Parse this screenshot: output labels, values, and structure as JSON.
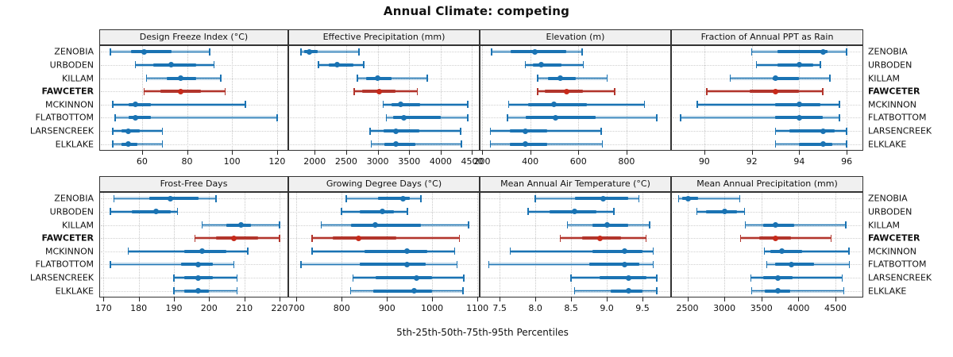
{
  "title": "Annual Climate: competing",
  "caption": "5th-25th-50th-75th-95th Percentiles",
  "colors": {
    "series_blue": "#1A73B3",
    "series_blue_band": "rgba(26,115,179,0.30)",
    "highlight_red": "#B2352C",
    "highlight_red_band": "rgba(178,53,44,0.30)",
    "highlight_red_dot": "#C72A1A",
    "strip_background": "#F0F0F0",
    "panel_border": "#333333",
    "gridline": "#C8C8C8"
  },
  "chart_data": {
    "type": "percentile-dotplot-trellis",
    "percentiles_shown": [
      "5th",
      "25th",
      "50th",
      "75th",
      "95th"
    ],
    "sites": [
      "ZENOBIA",
      "URBODEN",
      "KILLAM",
      "FAWCETER",
      "MCKINNON",
      "FLATBOTTOM",
      "LARSENCREEK",
      "ELKLAKE"
    ],
    "highlight_site": "FAWCETER",
    "legend_position": "none",
    "grid": true,
    "panels": [
      {
        "title": "Design Freeze Index (°C)",
        "row": 0,
        "col": 0,
        "xlim": [
          41,
          125
        ],
        "ticks": [
          60,
          80,
          100,
          120
        ],
        "tick_labels": [
          "60",
          "80",
          "100",
          "120"
        ],
        "values": {
          "ZENOBIA": [
            46,
            55,
            61,
            73,
            90
          ],
          "URBODEN": [
            57,
            65,
            73,
            84,
            92
          ],
          "KILLAM": [
            62,
            71,
            77,
            84,
            95
          ],
          "FAWCETER": [
            61,
            68,
            77,
            86,
            97
          ],
          "MCKINNON": [
            47,
            54,
            57,
            64,
            106
          ],
          "FLATBOTTOM": [
            48,
            54,
            57,
            64,
            120
          ],
          "LARSENCREEK": [
            47,
            51,
            54,
            59,
            69
          ],
          "ELKLAKE": [
            47,
            51,
            54,
            58,
            69
          ]
        }
      },
      {
        "title": "Effective Precipitation (mm)",
        "row": 0,
        "col": 1,
        "xlim": [
          1580,
          4620
        ],
        "ticks": [
          2000,
          2500,
          3000,
          3500,
          4000,
          4500
        ],
        "tick_labels": [
          "2000",
          "2500",
          "3000",
          "3500",
          "4000",
          "4500"
        ],
        "values": {
          "ZENOBIA": [
            1780,
            1830,
            1910,
            2050,
            2700
          ],
          "URBODEN": [
            2060,
            2220,
            2360,
            2610,
            2780
          ],
          "KILLAM": [
            2680,
            2820,
            3000,
            3220,
            3790
          ],
          "FAWCETER": [
            2630,
            2750,
            3030,
            3280,
            3630
          ],
          "MCKINNON": [
            3090,
            3220,
            3370,
            3680,
            4430
          ],
          "FLATBOTTOM": [
            3140,
            3240,
            3410,
            4000,
            4430
          ],
          "LARSENCREEK": [
            2880,
            3090,
            3290,
            3660,
            4320
          ],
          "ELKLAKE": [
            2900,
            3100,
            3290,
            3600,
            4330
          ]
        }
      },
      {
        "title": "Elevation (m)",
        "row": 0,
        "col": 2,
        "xlim": [
          190,
          985
        ],
        "ticks": [
          200,
          400,
          600,
          800
        ],
        "tick_labels": [
          "200",
          "400",
          "600",
          "800"
        ],
        "values": {
          "ZENOBIA": [
            240,
            320,
            420,
            550,
            615
          ],
          "URBODEN": [
            380,
            410,
            445,
            530,
            620
          ],
          "KILLAM": [
            430,
            475,
            525,
            590,
            720
          ],
          "FAWCETER": [
            430,
            460,
            550,
            620,
            750
          ],
          "MCKINNON": [
            310,
            390,
            500,
            635,
            875
          ],
          "FLATBOTTOM": [
            305,
            380,
            505,
            670,
            925
          ],
          "LARSENCREEK": [
            235,
            315,
            380,
            470,
            695
          ],
          "ELKLAKE": [
            235,
            315,
            380,
            470,
            700
          ]
        }
      },
      {
        "title": "Fraction of Annual PPT as Rain",
        "row": 0,
        "col": 3,
        "xlim": [
          88.6,
          96.7
        ],
        "ticks": [
          90,
          92,
          94,
          96
        ],
        "tick_labels": [
          "90",
          "92",
          "94",
          "96"
        ],
        "values": {
          "ZENOBIA": [
            92.0,
            93.1,
            95.0,
            95.2,
            96.0
          ],
          "URBODEN": [
            92.2,
            93.1,
            94.0,
            94.6,
            94.9
          ],
          "KILLAM": [
            91.1,
            92.9,
            93.0,
            94.0,
            95.3
          ],
          "FAWCETER": [
            90.1,
            91.9,
            93.0,
            94.0,
            95.0
          ],
          "MCKINNON": [
            89.7,
            93.0,
            94.0,
            94.9,
            95.7
          ],
          "FLATBOTTOM": [
            89.0,
            93.0,
            94.0,
            95.0,
            95.7
          ],
          "LARSENCREEK": [
            93.0,
            93.6,
            95.0,
            95.5,
            96.0
          ],
          "ELKLAKE": [
            93.0,
            94.0,
            95.0,
            95.4,
            96.0
          ]
        }
      },
      {
        "title": "Frost-Free Days",
        "row": 1,
        "col": 0,
        "xlim": [
          168.8,
          222.5
        ],
        "ticks": [
          170,
          180,
          190,
          200,
          210,
          220
        ],
        "tick_labels": [
          "170",
          "180",
          "190",
          "200",
          "210",
          "220"
        ],
        "values": {
          "ZENOBIA": [
            173,
            183,
            189,
            197,
            202
          ],
          "URBODEN": [
            172,
            178,
            185,
            189,
            191
          ],
          "KILLAM": [
            198,
            205,
            209,
            212,
            220
          ],
          "FAWCETER": [
            196,
            202,
            207,
            214,
            220
          ],
          "MCKINNON": [
            177,
            193,
            198,
            205,
            211
          ],
          "FLATBOTTOM": [
            172,
            192,
            197,
            201,
            207
          ],
          "LARSENCREEK": [
            190,
            193,
            197,
            201,
            208
          ],
          "ELKLAKE": [
            190,
            193,
            197,
            200,
            208
          ]
        }
      },
      {
        "title": "Growing Degree Days (°C)",
        "row": 1,
        "col": 1,
        "xlim": [
          682,
          1105
        ],
        "ticks": [
          700,
          800,
          900,
          1000,
          1100
        ],
        "tick_labels": [
          "700",
          "800",
          "900",
          "1000",
          "1100"
        ],
        "values": {
          "ZENOBIA": [
            810,
            880,
            935,
            950,
            975
          ],
          "URBODEN": [
            800,
            840,
            890,
            915,
            945
          ],
          "KILLAM": [
            755,
            820,
            875,
            975,
            1080
          ],
          "FAWCETER": [
            735,
            780,
            838,
            920,
            1060
          ],
          "MCKINNON": [
            735,
            850,
            945,
            990,
            1050
          ],
          "FLATBOTTOM": [
            710,
            840,
            945,
            985,
            1055
          ],
          "LARSENCREEK": [
            825,
            875,
            965,
            1000,
            1070
          ],
          "ELKLAKE": [
            820,
            870,
            960,
            1000,
            1068
          ]
        }
      },
      {
        "title": "Mean Annual Air Temperature (°C)",
        "row": 1,
        "col": 2,
        "xlim": [
          7.22,
          9.9
        ],
        "ticks": [
          7.5,
          8.0,
          8.5,
          9.0,
          9.5
        ],
        "tick_labels": [
          "7.5",
          "8.0",
          "8.5",
          "9.0",
          "9.5"
        ],
        "values": {
          "ZENOBIA": [
            8.0,
            8.55,
            8.95,
            9.3,
            9.45
          ],
          "URBODEN": [
            7.9,
            8.2,
            8.55,
            8.85,
            9.1
          ],
          "KILLAM": [
            8.45,
            8.8,
            9.0,
            9.3,
            9.6
          ],
          "FAWCETER": [
            8.35,
            8.65,
            8.9,
            9.2,
            9.55
          ],
          "MCKINNON": [
            7.65,
            8.8,
            9.25,
            9.5,
            9.65
          ],
          "FLATBOTTOM": [
            7.35,
            8.75,
            9.25,
            9.45,
            9.65
          ],
          "LARSENCREEK": [
            8.5,
            8.9,
            9.3,
            9.55,
            9.7
          ],
          "ELKLAKE": [
            8.55,
            9.05,
            9.3,
            9.5,
            9.7
          ]
        }
      },
      {
        "title": "Mean Annual Precipitation (mm)",
        "row": 1,
        "col": 3,
        "xlim": [
          2280,
          4875
        ],
        "ticks": [
          2500,
          3000,
          3500,
          4000,
          4500
        ],
        "tick_labels": [
          "2500",
          "3000",
          "3500",
          "4000",
          "4500"
        ],
        "values": {
          "ZENOBIA": [
            2380,
            2430,
            2510,
            2640,
            3210
          ],
          "URBODEN": [
            2630,
            2750,
            3000,
            3170,
            3270
          ],
          "KILLAM": [
            3280,
            3520,
            3690,
            3940,
            4640
          ],
          "FAWCETER": [
            3220,
            3470,
            3690,
            3900,
            4440
          ],
          "MCKINNON": [
            3540,
            3620,
            3780,
            4050,
            4680
          ],
          "FLATBOTTOM": [
            3570,
            3690,
            3900,
            4210,
            4690
          ],
          "LARSENCREEK": [
            3360,
            3520,
            3720,
            3920,
            4590
          ],
          "ELKLAKE": [
            3370,
            3540,
            3720,
            3890,
            4610
          ]
        }
      }
    ]
  }
}
